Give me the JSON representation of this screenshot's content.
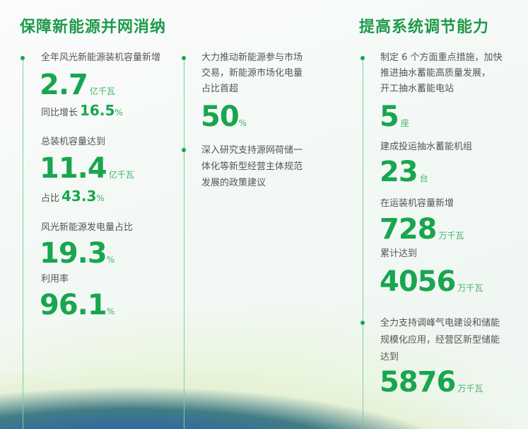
{
  "left_title": "保障新能源并网消纳",
  "right_title": "提高系统调节能力",
  "left": {
    "l1": "全年风光新能源装机容量新增",
    "v1": "2.7",
    "u1": "亿千瓦",
    "l1b": "同比增长",
    "v1b": "16.5",
    "p1b": "%",
    "l2": "总装机容量达到",
    "v2": "11.4",
    "u2": "亿千瓦",
    "l2b": "占比",
    "v2b": "43.3",
    "p2b": "%",
    "l3": "风光新能源发电量占比",
    "v3": "19.3",
    "p3": "%",
    "l4": "利用率",
    "v4": "96.1",
    "p4": "%"
  },
  "middle": {
    "t1": [
      "大力推动新能源参与市场",
      "交易，新能源市场化电量",
      "占比首超"
    ],
    "v1": "50",
    "p1": "%",
    "t2": [
      "深入研究支持源网荷储一",
      "体化等新型经营主体规范",
      "发展的政策建议"
    ]
  },
  "right": {
    "t1": [
      "制定 6 个方面重点措施，加快",
      "推进抽水蓄能高质量发展，",
      "开工抽水蓄能电站"
    ],
    "v1": "5",
    "u1": "座",
    "l2": "建成投运抽水蓄能机组",
    "v2": "23",
    "u2": "台",
    "l3": "在运装机容量新增",
    "v3": "728",
    "u3": "万千瓦",
    "l4": "累计达到",
    "v4": "4056",
    "u4": "万千瓦",
    "t5": [
      "全力支持调峰气电建设和储能",
      "规模化应用，经营区新型储能",
      "达到"
    ],
    "v5": "5876",
    "u5": "万千瓦"
  }
}
